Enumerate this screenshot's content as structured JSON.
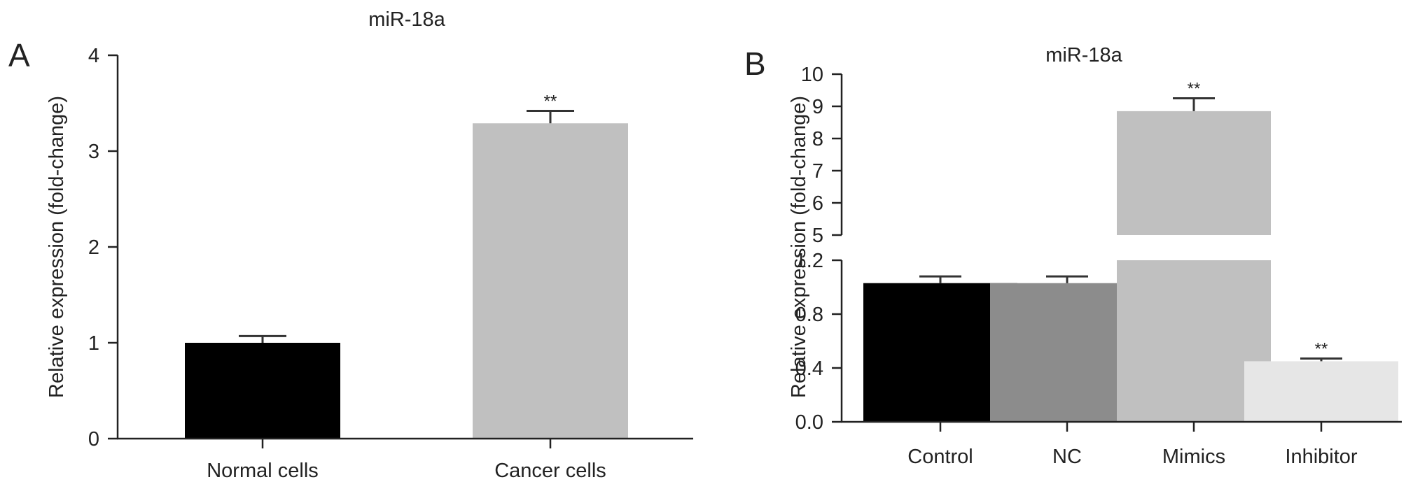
{
  "panels": [
    {
      "letter": "A",
      "chart_data": {
        "type": "bar",
        "title": "miR-18a",
        "ylabel": "Relative expression (fold-change)",
        "xlabel": "",
        "categories": [
          "Normal cells",
          "Cancer cells"
        ],
        "values": [
          1.0,
          3.29
        ],
        "errors": [
          0.07,
          0.13
        ],
        "annotations": [
          "",
          "**"
        ],
        "colors": [
          "#000000",
          "#c0c0c0"
        ],
        "ylim": [
          0,
          4
        ],
        "yticks": [
          0,
          1,
          2,
          3,
          4
        ],
        "ytick_labels": [
          "0",
          "1",
          "2",
          "3",
          "4"
        ],
        "grid": false
      }
    },
    {
      "letter": "B",
      "chart_data": {
        "type": "bar",
        "title": "miR-18a",
        "ylabel": "Relative expression (fold-change)",
        "xlabel": "",
        "categories": [
          "Control",
          "NC",
          "Mimics",
          "Inhibitor"
        ],
        "values": [
          1.03,
          1.03,
          8.85,
          0.45
        ],
        "errors": [
          0.05,
          0.05,
          0.4,
          0.02
        ],
        "annotations": [
          "",
          "",
          "**",
          "**"
        ],
        "colors": [
          "#000000",
          "#8c8c8c",
          "#c0c0c0",
          "#e6e6e6"
        ],
        "y_axis_break": true,
        "ylim_lower": [
          0,
          1.2
        ],
        "ylim_upper": [
          5,
          10
        ],
        "yticks_lower": [
          0,
          0.4,
          0.8,
          1.2
        ],
        "ytick_labels_lower": [
          "0.0",
          "0.4",
          "0.8",
          "1.2"
        ],
        "yticks_upper": [
          5,
          6,
          7,
          8,
          9,
          10
        ],
        "ytick_labels_upper": [
          "5",
          "6",
          "7",
          "8",
          "9",
          "10"
        ],
        "grid": false
      }
    }
  ]
}
